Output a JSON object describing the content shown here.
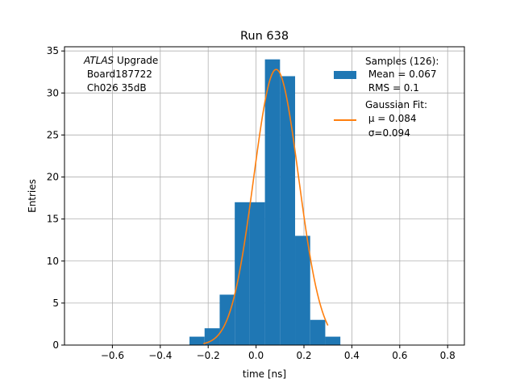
{
  "chart_data": {
    "type": "bar",
    "title": "Run 638",
    "xlabel": "time [ns]",
    "ylabel": "Entries",
    "xlim": [
      -0.8,
      0.87
    ],
    "ylim": [
      0,
      35.5
    ],
    "xticks": [
      -0.6,
      -0.4,
      -0.2,
      0.0,
      0.2,
      0.4,
      0.6,
      0.8
    ],
    "xtick_labels": [
      "−0.6",
      "−0.4",
      "−0.2",
      "0.0",
      "0.2",
      "0.4",
      "0.6",
      "0.8"
    ],
    "yticks": [
      0,
      5,
      10,
      15,
      20,
      25,
      30,
      35
    ],
    "ytick_labels": [
      "0",
      "5",
      "10",
      "15",
      "20",
      "25",
      "30",
      "35"
    ],
    "grid": true,
    "legend_position": "top-right",
    "histogram": {
      "name": "Samples (126):",
      "color": "#1f77b4",
      "bin_edges": [
        -0.278,
        -0.215,
        -0.152,
        -0.089,
        -0.026,
        0.037,
        0.1,
        0.163,
        0.226,
        0.289,
        0.352
      ],
      "counts": [
        1,
        2,
        6,
        17,
        17,
        34,
        32,
        13,
        3,
        1
      ],
      "stats": [
        " Mean = 0.067",
        " RMS = 0.1"
      ]
    },
    "fit": {
      "name": "Gaussian Fit:",
      "color": "#ff7f0e",
      "mu": 0.084,
      "sigma": 0.094,
      "amplitude": 32.8,
      "x_range": [
        -0.22,
        0.3
      ],
      "stats": [
        " μ = 0.084",
        " σ=0.094"
      ]
    },
    "annotation": {
      "italic": "ATLAS",
      "rest": " Upgrade",
      "lines": [
        " Board187722",
        " Ch026 35dB"
      ]
    }
  }
}
